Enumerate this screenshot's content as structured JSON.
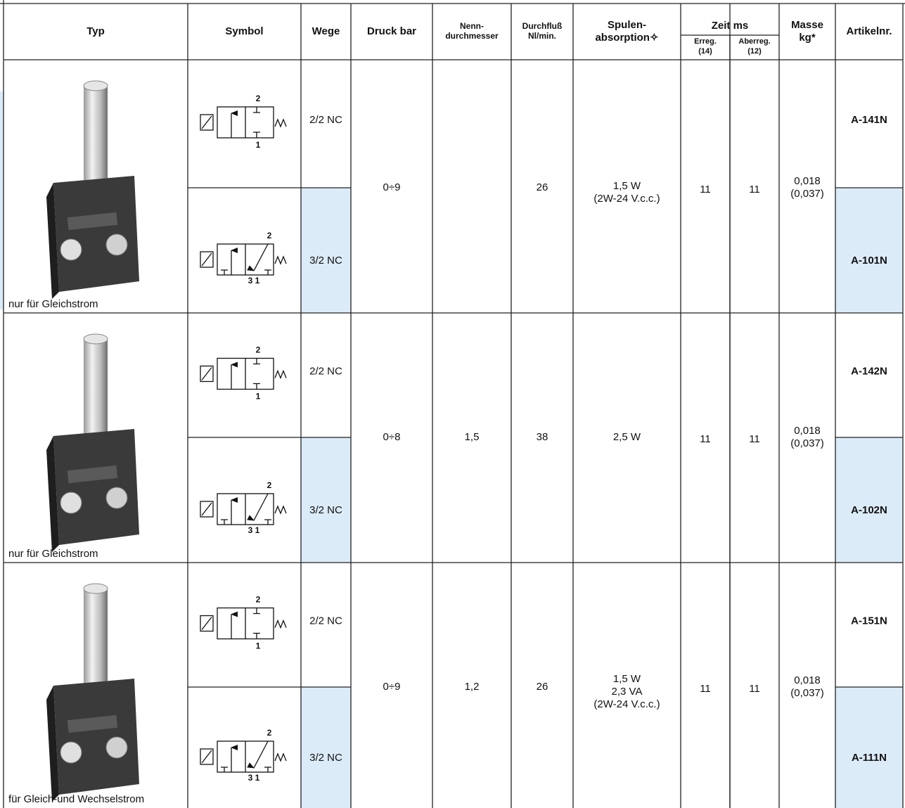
{
  "header": {
    "columns": [
      [
        "Typ"
      ],
      [
        "Symbol"
      ],
      [
        "Wege"
      ],
      [
        "Druck bar"
      ],
      [
        "Nenn-",
        "durchmesser"
      ],
      [
        "Durchfluß",
        "Nl/min."
      ],
      [
        "Spulen-",
        "absorption✧"
      ],
      [
        "Masse",
        "kg*"
      ],
      [
        "Artikelnr."
      ]
    ],
    "zeit": {
      "title": "Zeit ms",
      "sub": [
        [
          "Erreg.",
          "(14)"
        ],
        [
          "Aberreg.",
          "(12)"
        ]
      ]
    }
  },
  "groups": [
    {
      "caption": "nur für Gleichstrom",
      "druck": "0÷9",
      "durchfluss": "26",
      "spulen": [
        "1,5 W",
        "(2W-24 V.c.c.)"
      ],
      "erreg": "11",
      "aberreg": "11",
      "masse": [
        "0,018",
        "(0,037)"
      ],
      "rows": [
        {
          "ports": [
            "2",
            "1"
          ],
          "wege": "2/2 NC",
          "artikel": "A-141N"
        },
        {
          "ports": [
            "2",
            "3 1"
          ],
          "wege": "3/2 NC",
          "artikel": "A-101N"
        }
      ]
    },
    {
      "caption": "nur für Gleichstrom",
      "druck": "0÷8",
      "nenn": "1,5",
      "durchfluss": "38",
      "spulen": [
        "2,5 W"
      ],
      "erreg": "11",
      "aberreg": "11",
      "masse": [
        "0,018",
        "(0,037)"
      ],
      "rows": [
        {
          "ports": [
            "2",
            "1"
          ],
          "wege": "2/2 NC",
          "artikel": "A-142N"
        },
        {
          "ports": [
            "2",
            "3 1"
          ],
          "wege": "3/2 NC",
          "artikel": "A-102N"
        }
      ]
    },
    {
      "caption": "für Gleich-und Wechselstrom",
      "druck": "0÷9",
      "nenn": "1,2",
      "durchfluss": "26",
      "spulen": [
        "1,5 W",
        "2,3 VA",
        "(2W-24 V.c.c.)"
      ],
      "erreg": "11",
      "aberreg": "11",
      "masse": [
        "0,018",
        "(0,037)"
      ],
      "rows": [
        {
          "ports": [
            "2",
            "1"
          ],
          "wege": "2/2 NC",
          "artikel": "A-151N"
        },
        {
          "ports": [
            "2",
            "3 1"
          ],
          "wege": "3/2 NC",
          "artikel": "A-111N"
        }
      ]
    }
  ]
}
